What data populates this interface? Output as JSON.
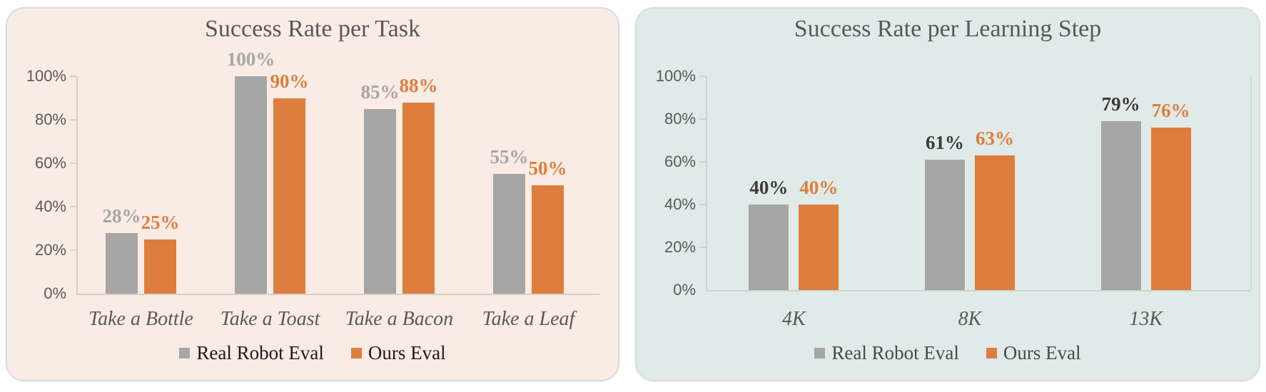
{
  "page": {
    "background": "#ffffff"
  },
  "chart_data": [
    {
      "type": "bar",
      "title": "Success Rate per Task",
      "categories": [
        "Take a Bottle",
        "Take a Toast",
        "Take a Bacon",
        "Take a Leaf"
      ],
      "series": [
        {
          "name": "Real Robot Eval",
          "values": [
            28,
            100,
            85,
            55
          ],
          "color": "#A6A6A6",
          "label_color": "#A6A6A6"
        },
        {
          "name": "Ours Eval",
          "values": [
            25,
            90,
            88,
            50
          ],
          "color": "#DE7E3E",
          "label_color": "#DE7E3E"
        }
      ],
      "data_labels": [
        [
          "28%",
          "100%",
          "85%",
          "55%"
        ],
        [
          "25%",
          "90%",
          "88%",
          "50%"
        ]
      ],
      "ylim": [
        0,
        100
      ],
      "yticks": [
        "0%",
        "20%",
        "40%",
        "60%",
        "80%",
        "100%"
      ],
      "grid": false,
      "legend_position": "bottom",
      "panel_background": "#F9ECE4",
      "axis_color": "#D9CFC7",
      "tick_label_color": "#595959",
      "title_color": "#595959",
      "category_label_color": "#595959",
      "legend_text_color": "#1C1C1C"
    },
    {
      "type": "bar",
      "title": "Success Rate per Learning Step",
      "categories": [
        "4K",
        "8K",
        "13K"
      ],
      "series": [
        {
          "name": "Real Robot Eval",
          "values": [
            40,
            61,
            79
          ],
          "color": "#A6A6A6",
          "label_color": "#3B3B3B"
        },
        {
          "name": "Ours Eval",
          "values": [
            40,
            63,
            76
          ],
          "color": "#DE7E3E",
          "label_color": "#DE7E3E"
        }
      ],
      "data_labels": [
        [
          "40%",
          "61%",
          "79%"
        ],
        [
          "40%",
          "63%",
          "76%"
        ]
      ],
      "ylim": [
        0,
        100
      ],
      "yticks": [
        "0%",
        "20%",
        "40%",
        "60%",
        "80%",
        "100%"
      ],
      "grid": false,
      "legend_position": "bottom",
      "panel_background": "#E0EAE8",
      "axis_color": "#C8D6D3",
      "tick_label_color": "#595959",
      "title_color": "#595959",
      "category_label_color": "#595959",
      "legend_text_color": "#4A4A4A"
    }
  ]
}
